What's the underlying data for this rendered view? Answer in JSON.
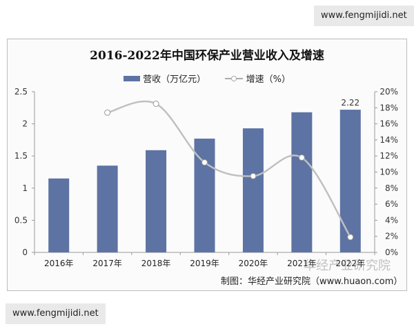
{
  "watermarks": [
    "www.fengmijidi.net",
    "www.fengmijidi.net"
  ],
  "logo_watermark": "华经产业研究院",
  "source": "制图：华经产业研究院（www.huaon.com）",
  "chart_data": {
    "type": "bar+line",
    "title": "2016-2022年中国环保产业营业收入及增速",
    "categories": [
      "2016年",
      "2017年",
      "2018年",
      "2019年",
      "2020年",
      "2021年",
      "2022年"
    ],
    "series": [
      {
        "name": "营收（万亿元）",
        "type": "bar",
        "axis": "left",
        "color": "#5d73a3",
        "values": [
          1.15,
          1.35,
          1.59,
          1.77,
          1.93,
          2.18,
          2.22
        ]
      },
      {
        "name": "增速（%）",
        "type": "line",
        "axis": "right",
        "color": "#c0c0c0",
        "values": [
          null,
          17.4,
          18.5,
          11.2,
          9.5,
          11.8,
          1.9
        ]
      }
    ],
    "data_labels": [
      {
        "category": "2022年",
        "text": "2.22"
      }
    ],
    "y_left": {
      "range": [
        0,
        2.5
      ],
      "ticks": [
        "0",
        "0.5",
        "1",
        "1.5",
        "2",
        "2.5"
      ]
    },
    "y_right": {
      "range": [
        0,
        20
      ],
      "ticks": [
        "0%",
        "2%",
        "4%",
        "6%",
        "8%",
        "10%",
        "12%",
        "14%",
        "16%",
        "18%",
        "20%"
      ]
    },
    "grid": false,
    "legend": "top"
  }
}
